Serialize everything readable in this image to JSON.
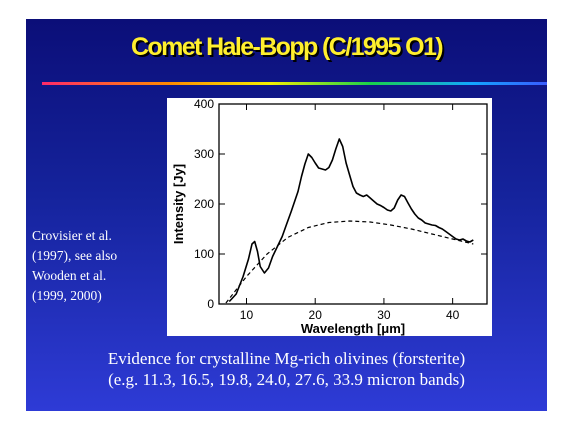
{
  "slide": {
    "title": "Comet Hale-Bopp (C/1995 O1)",
    "title_color": "#ffef2e",
    "background_color": "#15239c",
    "citation_lines": [
      "Crovisier et al.",
      "(1997), see also",
      "Wooden et al.",
      "(1999, 2000)"
    ],
    "caption_lines": [
      "Evidence for crystalline Mg-rich olivines (forsterite)",
      "(e.g. 11.3, 16.5, 19.8, 24.0, 27.6, 33.9 micron bands)"
    ]
  },
  "chart_data": {
    "type": "line",
    "xlabel": "Wavelength [μm]",
    "ylabel": "Intensity [Jy]",
    "xlim": [
      6,
      45
    ],
    "ylim": [
      0,
      400
    ],
    "xticks": [
      10,
      20,
      30,
      40
    ],
    "yticks": [
      0,
      100,
      200,
      300,
      400
    ],
    "grid": false,
    "series": [
      {
        "style": "solid",
        "x": [
          7.5,
          8.5,
          9.5,
          10.3,
          10.8,
          11.2,
          11.6,
          12.0,
          12.6,
          13.2,
          13.8,
          14.5,
          15.2,
          15.8,
          16.5,
          17.0,
          17.5,
          18.0,
          18.5,
          19.0,
          19.5,
          20.0,
          20.5,
          21.0,
          21.5,
          22.0,
          22.5,
          23.0,
          23.5,
          24.0,
          24.5,
          25.0,
          25.5,
          26.0,
          26.5,
          27.0,
          27.5,
          28.0,
          28.5,
          29.0,
          29.5,
          30.0,
          30.5,
          31.0,
          31.5,
          32.0,
          32.5,
          33.0,
          33.5,
          34.0,
          34.5,
          35.0,
          35.5,
          36.0,
          36.5,
          37.0,
          37.5,
          38.0,
          38.5,
          39.0,
          39.5,
          40.0,
          40.5,
          41.0,
          41.5,
          42.0,
          42.5,
          43.0
        ],
        "y": [
          5,
          20,
          55,
          90,
          120,
          125,
          105,
          75,
          62,
          72,
          95,
          115,
          135,
          158,
          185,
          205,
          225,
          255,
          280,
          300,
          293,
          282,
          272,
          270,
          268,
          273,
          288,
          310,
          330,
          315,
          282,
          258,
          235,
          222,
          218,
          215,
          218,
          212,
          206,
          200,
          197,
          193,
          188,
          186,
          192,
          208,
          218,
          215,
          202,
          190,
          180,
          172,
          168,
          162,
          160,
          158,
          157,
          153,
          150,
          145,
          140,
          135,
          130,
          128,
          130,
          126,
          124,
          128
        ]
      },
      {
        "style": "dashed",
        "x": [
          7,
          10,
          13,
          16,
          19,
          22,
          25,
          28,
          31,
          34,
          37,
          40,
          43
        ],
        "y": [
          2,
          55,
          100,
          133,
          153,
          163,
          166,
          164,
          158,
          150,
          140,
          130,
          120
        ]
      }
    ]
  }
}
